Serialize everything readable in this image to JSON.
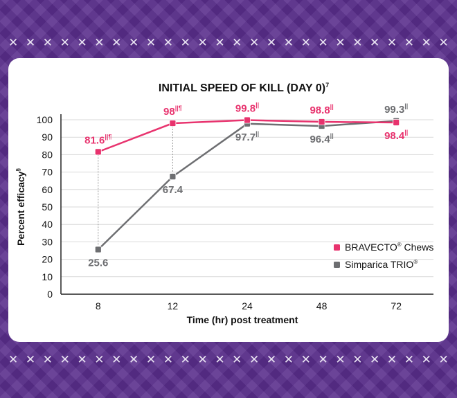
{
  "decor": {
    "x_glyph": "✕",
    "x_count": 26
  },
  "colors": {
    "bravecto": "#e8336e",
    "simparica": "#6d6e71",
    "grid": "#d9d9d9",
    "axis": "#222222",
    "background": "#5a2e8c"
  },
  "chart_data": {
    "type": "line",
    "title": "INITIAL SPEED OF KILL (DAY 0)",
    "title_sup": "7",
    "xlabel": "Time (hr) post treatment",
    "ylabel": "Percent efficacy",
    "ylabel_sup": "§",
    "categories": [
      "8",
      "12",
      "24",
      "48",
      "72"
    ],
    "ylim": [
      0,
      100
    ],
    "yticks": [
      0,
      10,
      20,
      30,
      40,
      50,
      60,
      70,
      80,
      90,
      100
    ],
    "grid": true,
    "legend_position": "bottom-right",
    "series": [
      {
        "name": "BRAVECTO",
        "name_sup": "®",
        "name_suffix": " Chews",
        "color": "#e8336e",
        "values": [
          81.6,
          98,
          99.8,
          98.8,
          98.4
        ],
        "labels": [
          "81.6",
          "98",
          "99.8",
          "98.8",
          "98.4"
        ],
        "label_sups": [
          "||¶",
          "||¶",
          "||",
          "||",
          "||"
        ],
        "label_positions": [
          "above",
          "above",
          "above",
          "above",
          "below"
        ]
      },
      {
        "name": "Simparica TRIO",
        "name_sup": "®",
        "name_suffix": "",
        "color": "#6d6e71",
        "values": [
          25.6,
          67.4,
          97.7,
          96.4,
          99.3
        ],
        "labels": [
          "25.6",
          "67.4",
          "97.7",
          "96.4",
          "99.3"
        ],
        "label_sups": [
          "",
          "",
          "||",
          "||",
          "||"
        ],
        "label_positions": [
          "below",
          "below",
          "below",
          "below",
          "above"
        ]
      }
    ],
    "annotations": "dashed vertical connectors between series at 8 and 12"
  }
}
